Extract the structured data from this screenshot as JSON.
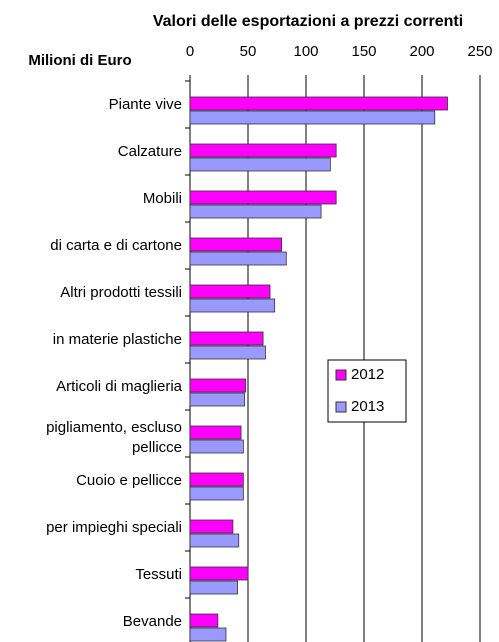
{
  "chart_data": {
    "type": "bar",
    "orientation": "horizontal",
    "title": "Valori delle esportazioni a prezzi correnti",
    "axis_label": "Milioni di Euro",
    "categories": [
      "Piante vive",
      "Calzature",
      "Mobili",
      "di carta e di cartone",
      "Altri prodotti tessili",
      "in materie plastiche",
      "Articoli di maglieria",
      "pigliamento, escluso\npellicce",
      "Cuoio e pellicce",
      "per impieghi speciali",
      "Tessuti",
      "Bevande"
    ],
    "series": [
      {
        "name": "2012",
        "color": "#ff00ff",
        "values": [
          222,
          126,
          126,
          79,
          69,
          63,
          48,
          44,
          46,
          37,
          50,
          24
        ]
      },
      {
        "name": "2013",
        "color": "#9999ff",
        "values": [
          211,
          121,
          113,
          83,
          73,
          65,
          47,
          46,
          46,
          42,
          41,
          31
        ]
      }
    ],
    "xlim": [
      0,
      250
    ],
    "xticks": [
      0,
      50,
      100,
      150,
      200,
      250
    ],
    "grid": true
  }
}
